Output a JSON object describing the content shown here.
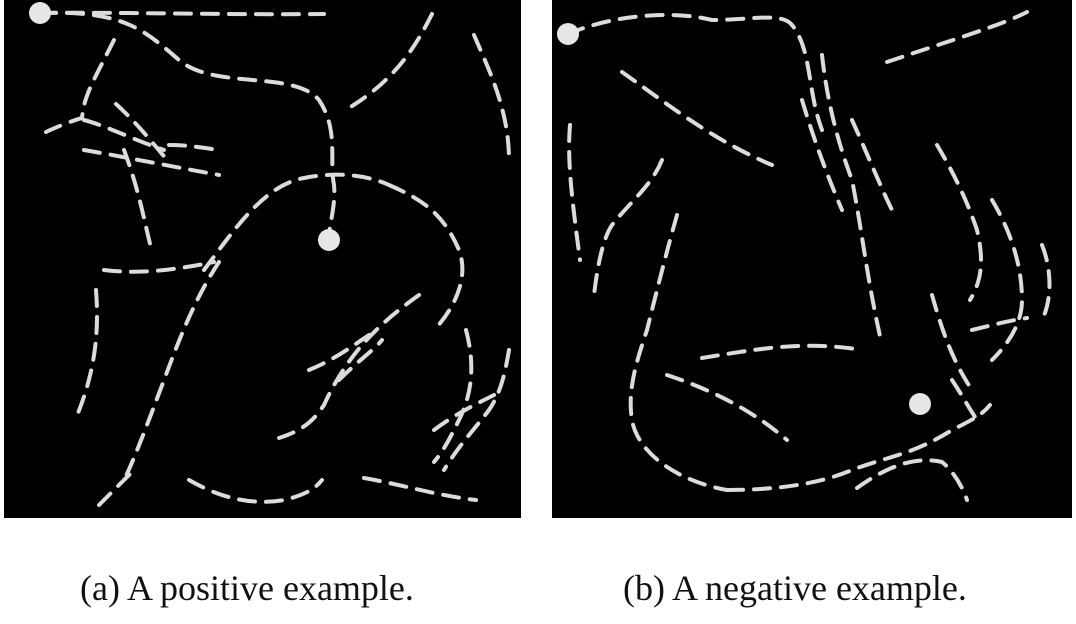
{
  "figure": {
    "panels": [
      {
        "id": "a",
        "caption": "(a) A positive example.",
        "note": "two marked endpoints connected by a single dashed path"
      },
      {
        "id": "b",
        "caption": "(b) A negative example.",
        "note": "two marked endpoints not connected by a single dashed path"
      }
    ],
    "colors": {
      "background": "#000000",
      "dash": "#dcdcdc",
      "marker": "#e6e6e6",
      "page": "#ffffff"
    }
  }
}
